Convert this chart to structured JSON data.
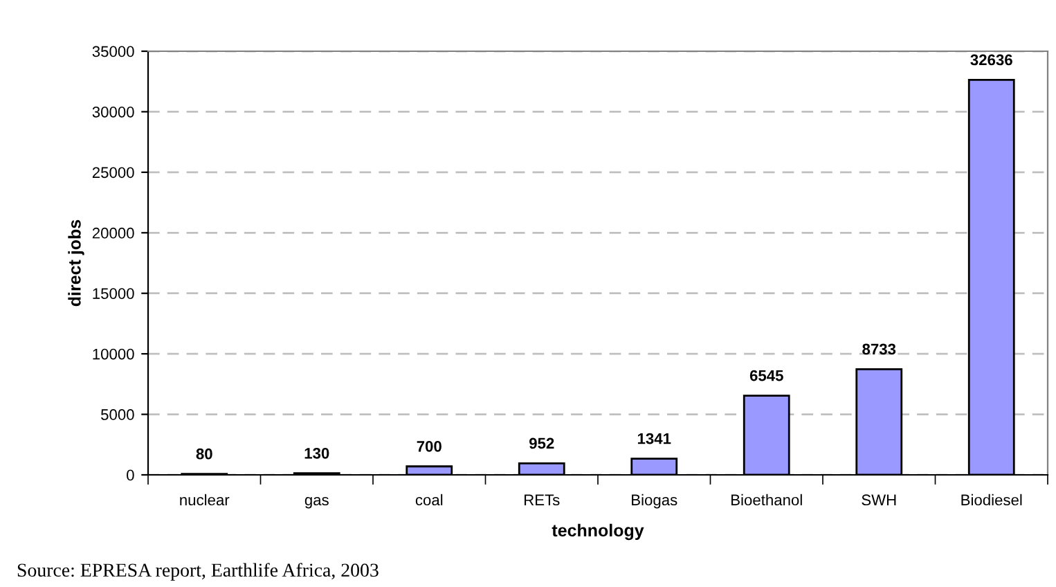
{
  "chart_data": {
    "type": "bar",
    "xlabel": "technology",
    "ylabel": "direct jobs",
    "categories": [
      "nuclear",
      "gas",
      "coal",
      "RETs",
      "Biogas",
      "Bioethanol",
      "SWH",
      "Biodiesel"
    ],
    "values": [
      80,
      130,
      700,
      952,
      1341,
      6545,
      8733,
      32636
    ],
    "color": "#9999ff",
    "ylim": [
      0,
      35000
    ],
    "yticks": [
      0,
      5000,
      10000,
      15000,
      20000,
      25000,
      30000,
      35000
    ],
    "grid": "y",
    "data_labels": true,
    "annotations": [
      "Source: EPRESA report, Earthlife Africa, 2003"
    ]
  }
}
